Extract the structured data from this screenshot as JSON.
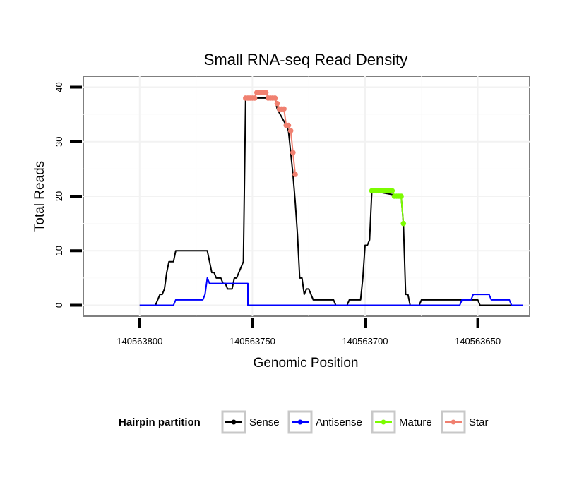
{
  "chart_data": {
    "type": "line",
    "title": "Small RNA-seq Read Density",
    "xlabel": "Genomic Position",
    "ylabel": "Total Reads",
    "x_reversed": true,
    "xlim": [
      140563825,
      140563627
    ],
    "ylim": [
      -2,
      42
    ],
    "x_ticks": [
      140563800,
      140563750,
      140563700,
      140563650
    ],
    "x_tick_labels": [
      "140563800",
      "140563750",
      "140563700",
      "140563650"
    ],
    "y_ticks": [
      0,
      10,
      20,
      30,
      40
    ],
    "y_tick_labels": [
      "0",
      "10",
      "20",
      "30",
      "40"
    ],
    "grid": true,
    "legend": {
      "title": "Hairpin partition",
      "position": "bottom",
      "entries": [
        {
          "label": "Sense",
          "color": "#000000"
        },
        {
          "label": "Antisense",
          "color": "#0000ff"
        },
        {
          "label": "Mature",
          "color": "#7cfc00"
        },
        {
          "label": "Star",
          "color": "#f08070"
        }
      ]
    },
    "series": [
      {
        "name": "Sense",
        "color": "#000000",
        "markers": false,
        "points": [
          [
            140563800,
            0
          ],
          [
            140563793,
            0
          ],
          [
            140563791,
            2
          ],
          [
            140563790,
            2
          ],
          [
            140563789,
            3
          ],
          [
            140563788,
            6
          ],
          [
            140563787,
            8
          ],
          [
            140563786,
            8
          ],
          [
            140563785,
            8
          ],
          [
            140563784,
            10
          ],
          [
            140563780,
            10
          ],
          [
            140563775,
            10
          ],
          [
            140563770,
            10
          ],
          [
            140563769,
            8
          ],
          [
            140563768,
            6
          ],
          [
            140563767,
            6
          ],
          [
            140563766,
            5
          ],
          [
            140563765,
            5
          ],
          [
            140563764,
            5
          ],
          [
            140563763,
            4
          ],
          [
            140563762,
            4
          ],
          [
            140563761,
            3
          ],
          [
            140563760,
            3
          ],
          [
            140563759,
            3
          ],
          [
            140563758,
            5
          ],
          [
            140563757,
            5
          ],
          [
            140563756,
            6
          ],
          [
            140563755,
            7
          ],
          [
            140563754,
            8
          ],
          [
            140563753,
            38
          ],
          [
            140563740,
            38
          ],
          [
            140563739,
            36
          ],
          [
            140563735,
            33
          ],
          [
            140563734,
            32
          ],
          [
            140563733,
            28
          ],
          [
            140563732,
            24
          ],
          [
            140563731,
            19
          ],
          [
            140563730,
            13
          ],
          [
            140563729,
            5
          ],
          [
            140563728,
            5
          ],
          [
            140563727,
            2
          ],
          [
            140563726,
            3
          ],
          [
            140563725,
            3
          ],
          [
            140563724,
            2
          ],
          [
            140563723,
            1
          ],
          [
            140563714,
            1
          ],
          [
            140563713,
            0
          ],
          [
            140563708,
            0
          ],
          [
            140563707,
            1
          ],
          [
            140563702,
            1
          ],
          [
            140563701,
            5
          ],
          [
            140563700,
            11
          ],
          [
            140563699,
            11
          ],
          [
            140563698,
            12
          ],
          [
            140563697,
            21
          ],
          [
            140563684,
            20
          ],
          [
            140563683,
            15
          ],
          [
            140563682,
            2
          ],
          [
            140563681,
            2
          ],
          [
            140563680,
            0
          ],
          [
            140563676,
            0
          ],
          [
            140563675,
            1
          ],
          [
            140563650,
            1
          ],
          [
            140563649,
            0
          ],
          [
            140563630,
            0
          ]
        ]
      },
      {
        "name": "Antisense",
        "color": "#0000ff",
        "markers": false,
        "points": [
          [
            140563800,
            0
          ],
          [
            140563792,
            0
          ],
          [
            140563791,
            0
          ],
          [
            140563785,
            0
          ],
          [
            140563784,
            1
          ],
          [
            140563772,
            1
          ],
          [
            140563771,
            2
          ],
          [
            140563770,
            5
          ],
          [
            140563769,
            4
          ],
          [
            140563760,
            4
          ],
          [
            140563752,
            4
          ],
          [
            140563752,
            0
          ],
          [
            140563710,
            0
          ],
          [
            140563670,
            0
          ],
          [
            140563658,
            0
          ],
          [
            140563657,
            1
          ],
          [
            140563653,
            1
          ],
          [
            140563652,
            2
          ],
          [
            140563645,
            2
          ],
          [
            140563644,
            1
          ],
          [
            140563636,
            1
          ],
          [
            140563635,
            0
          ],
          [
            140563630,
            0
          ]
        ]
      },
      {
        "name": "Mature",
        "color": "#7cfc00",
        "markers": true,
        "points": [
          [
            140563697,
            21
          ],
          [
            140563696,
            21
          ],
          [
            140563695,
            21
          ],
          [
            140563694,
            21
          ],
          [
            140563693,
            21
          ],
          [
            140563692,
            21
          ],
          [
            140563691,
            21
          ],
          [
            140563690,
            21
          ],
          [
            140563689,
            21
          ],
          [
            140563688,
            21
          ],
          [
            140563687,
            20
          ],
          [
            140563686,
            20
          ],
          [
            140563685,
            20
          ],
          [
            140563684,
            20
          ],
          [
            140563683,
            15
          ]
        ]
      },
      {
        "name": "Star",
        "color": "#f08070",
        "markers": true,
        "points": [
          [
            140563753,
            38
          ],
          [
            140563752,
            38
          ],
          [
            140563751,
            38
          ],
          [
            140563750,
            38
          ],
          [
            140563749,
            38
          ],
          [
            140563748,
            39
          ],
          [
            140563747,
            39
          ],
          [
            140563746,
            39
          ],
          [
            140563745,
            39
          ],
          [
            140563744,
            39
          ],
          [
            140563743,
            38
          ],
          [
            140563742,
            38
          ],
          [
            140563741,
            38
          ],
          [
            140563740,
            38
          ],
          [
            140563739,
            37
          ],
          [
            140563738,
            36
          ],
          [
            140563737,
            36
          ],
          [
            140563736,
            36
          ],
          [
            140563735,
            33
          ],
          [
            140563734,
            33
          ],
          [
            140563733,
            32
          ],
          [
            140563732,
            28
          ],
          [
            140563731,
            24
          ]
        ]
      }
    ]
  }
}
